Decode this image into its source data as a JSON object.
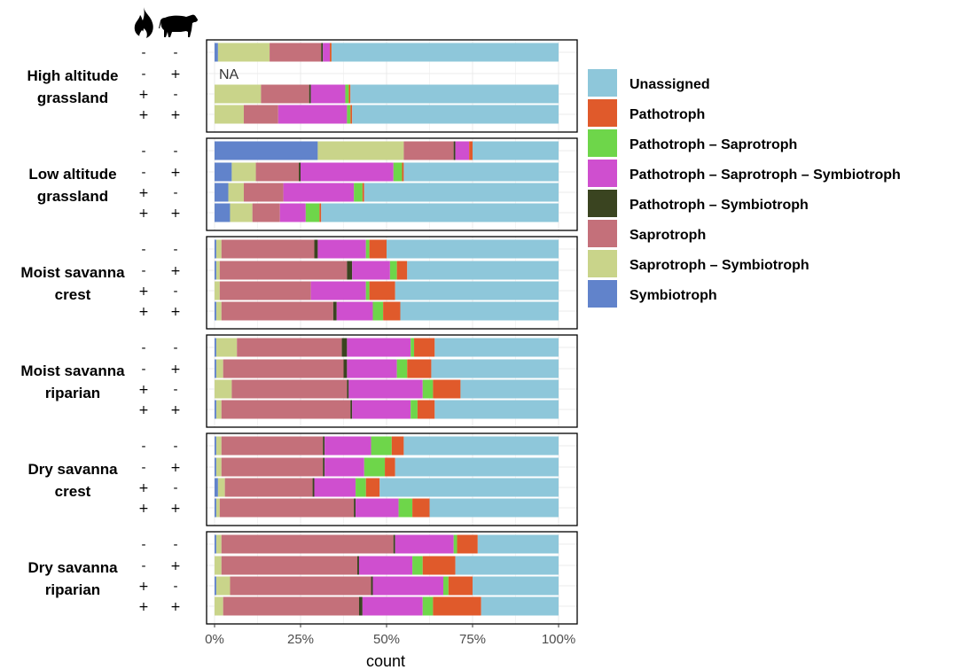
{
  "chart_data": {
    "type": "bar",
    "orientation": "horizontal",
    "stacked": true,
    "xlabel": "count",
    "xticks": [
      "0%",
      "25%",
      "50%",
      "75%",
      "100%"
    ],
    "xlim": [
      0,
      100
    ],
    "grid": true,
    "legend_position": "right",
    "icons": [
      "fire-icon",
      "cattle-icon"
    ],
    "series": [
      {
        "name": "Symbiotroph",
        "color": "#6183cb"
      },
      {
        "name": "Saprotroph – Symbiotroph",
        "color": "#c9d48a"
      },
      {
        "name": "Saprotroph",
        "color": "#c4707a"
      },
      {
        "name": "Pathotroph – Symbiotroph",
        "color": "#3a4420"
      },
      {
        "name": "Pathotroph – Saprotroph – Symbiotroph",
        "color": "#cf4fcf"
      },
      {
        "name": "Pathotroph – Saprotroph",
        "color": "#6ed64a"
      },
      {
        "name": "Pathotroph",
        "color": "#e05a2b"
      },
      {
        "name": "Unassigned",
        "color": "#8ec7da"
      }
    ],
    "legend_order": [
      "Unassigned",
      "Pathotroph",
      "Pathotroph – Saprotroph",
      "Pathotroph – Saprotroph – Symbiotroph",
      "Pathotroph – Symbiotroph",
      "Saprotroph",
      "Saprotroph – Symbiotroph",
      "Symbiotroph"
    ],
    "groups": [
      {
        "name": [
          "High altitude",
          "grassland"
        ],
        "rows": [
          {
            "fire": "-",
            "cattle": "-",
            "values": [
              1,
              15,
              15,
              0.5,
              2,
              0,
              0.5,
              66
            ]
          },
          {
            "fire": "-",
            "cattle": "+",
            "values": null,
            "na": "NA"
          },
          {
            "fire": "+",
            "cattle": "-",
            "values": [
              0,
              13.5,
              14,
              0.5,
              10,
              1,
              0.5,
              60.5
            ]
          },
          {
            "fire": "+",
            "cattle": "+",
            "values": [
              0,
              8.5,
              10,
              0,
              20,
              1,
              0.5,
              60
            ]
          }
        ]
      },
      {
        "name": [
          "Low altitude",
          "grassland"
        ],
        "rows": [
          {
            "fire": "-",
            "cattle": "-",
            "values": [
              30,
              25,
              14.5,
              0.5,
              4,
              0,
              1,
              25
            ]
          },
          {
            "fire": "-",
            "cattle": "+",
            "values": [
              5,
              7,
              12.5,
              0.5,
              27,
              2.5,
              0.5,
              45
            ]
          },
          {
            "fire": "+",
            "cattle": "-",
            "values": [
              4,
              4.5,
              11.5,
              0,
              20.5,
              2.5,
              0.5,
              56.5
            ]
          },
          {
            "fire": "+",
            "cattle": "+",
            "values": [
              4.5,
              6.5,
              8,
              0,
              7.5,
              4,
              0.5,
              69
            ]
          }
        ]
      },
      {
        "name": [
          "Moist savanna",
          "crest"
        ],
        "rows": [
          {
            "fire": "-",
            "cattle": "-",
            "values": [
              0.5,
              1.5,
              27,
              1,
              14,
              1,
              5,
              50
            ]
          },
          {
            "fire": "-",
            "cattle": "+",
            "values": [
              0.5,
              1,
              37,
              1.5,
              11,
              2,
              3,
              44
            ]
          },
          {
            "fire": "+",
            "cattle": "-",
            "values": [
              0,
              1.5,
              26.5,
              0,
              16,
              1,
              7.5,
              47.5
            ]
          },
          {
            "fire": "+",
            "cattle": "+",
            "values": [
              0.5,
              1.5,
              32.5,
              1,
              10.5,
              3,
              5,
              46
            ]
          }
        ]
      },
      {
        "name": [
          "Moist savanna",
          "riparian"
        ],
        "rows": [
          {
            "fire": "-",
            "cattle": "-",
            "values": [
              0.5,
              6,
              30.5,
              1.5,
              18.5,
              1,
              6,
              36
            ]
          },
          {
            "fire": "-",
            "cattle": "+",
            "values": [
              0.5,
              2,
              35,
              1,
              14.5,
              3,
              7,
              37
            ]
          },
          {
            "fire": "+",
            "cattle": "-",
            "values": [
              0,
              5,
              33.5,
              0.5,
              21.5,
              3,
              8,
              28.5
            ]
          },
          {
            "fire": "+",
            "cattle": "+",
            "values": [
              0.5,
              1.5,
              37.5,
              0.5,
              17,
              2,
              5,
              36
            ]
          }
        ]
      },
      {
        "name": [
          "Dry savanna",
          "crest"
        ],
        "rows": [
          {
            "fire": "-",
            "cattle": "-",
            "values": [
              0.5,
              1.5,
              29.5,
              0.5,
              13.5,
              6,
              3.5,
              45
            ]
          },
          {
            "fire": "-",
            "cattle": "+",
            "values": [
              0.5,
              1.5,
              29.5,
              0.5,
              11.5,
              6,
              3,
              47.5
            ]
          },
          {
            "fire": "+",
            "cattle": "-",
            "values": [
              1,
              2,
              25.5,
              0.5,
              12,
              3,
              4,
              52
            ]
          },
          {
            "fire": "+",
            "cattle": "+",
            "values": [
              0.5,
              1,
              39,
              0.5,
              12.5,
              4,
              5,
              37.5
            ]
          }
        ]
      },
      {
        "name": [
          "Dry savanna",
          "riparian"
        ],
        "rows": [
          {
            "fire": "-",
            "cattle": "-",
            "values": [
              0.5,
              1.5,
              50,
              0.5,
              17,
              1,
              6,
              23.5
            ]
          },
          {
            "fire": "-",
            "cattle": "+",
            "values": [
              0,
              2,
              39.5,
              0.5,
              15.5,
              3,
              9.5,
              30
            ]
          },
          {
            "fire": "+",
            "cattle": "-",
            "values": [
              0.5,
              4,
              41,
              0.5,
              20.5,
              1.5,
              7,
              25
            ]
          },
          {
            "fire": "+",
            "cattle": "+",
            "values": [
              0,
              2.5,
              39.5,
              1,
              17.5,
              3,
              14,
              22.5
            ]
          }
        ]
      }
    ]
  }
}
